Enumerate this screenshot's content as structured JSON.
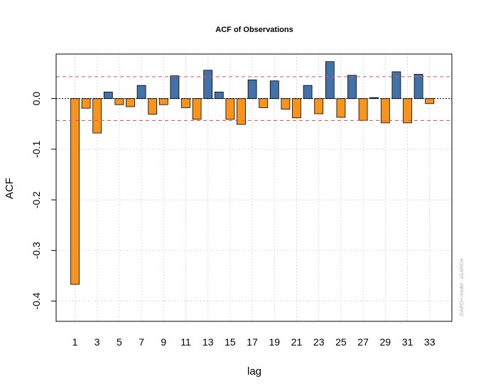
{
  "chart_data": {
    "type": "bar",
    "title": "ACF of Observations",
    "xlabel": "lag",
    "ylabel": "ACF",
    "watermark": "GARCH model : sGARCH",
    "x": [
      1,
      2,
      3,
      4,
      5,
      6,
      7,
      8,
      9,
      10,
      11,
      12,
      13,
      14,
      15,
      16,
      17,
      18,
      19,
      20,
      21,
      22,
      23,
      24,
      25,
      26,
      27,
      28,
      29,
      30,
      31,
      32,
      33
    ],
    "values": [
      -0.367,
      -0.019,
      -0.068,
      0.013,
      -0.012,
      -0.016,
      0.026,
      -0.031,
      -0.012,
      0.045,
      -0.018,
      -0.041,
      0.056,
      0.013,
      -0.041,
      -0.051,
      0.037,
      -0.018,
      0.035,
      -0.021,
      -0.038,
      0.026,
      -0.03,
      0.073,
      -0.037,
      0.046,
      -0.043,
      0.002,
      -0.048,
      0.053,
      -0.048,
      0.048,
      -0.01
    ],
    "x_ticks": [
      "1",
      "3",
      "5",
      "7",
      "9",
      "11",
      "13",
      "15",
      "17",
      "19",
      "21",
      "23",
      "25",
      "27",
      "29",
      "31",
      "33"
    ],
    "y_ticks": [
      "0.0",
      "-0.1",
      "-0.2",
      "-0.3",
      "-0.4"
    ],
    "ylim": [
      -0.44,
      0.088
    ],
    "confidence_bound": 0.0433,
    "grid": true,
    "colors": {
      "positive": "#4372a8",
      "negative": "#f7941d",
      "bound_line": "#e8555a",
      "zero_line": "#000000",
      "grid": "#cfcfcf"
    }
  }
}
